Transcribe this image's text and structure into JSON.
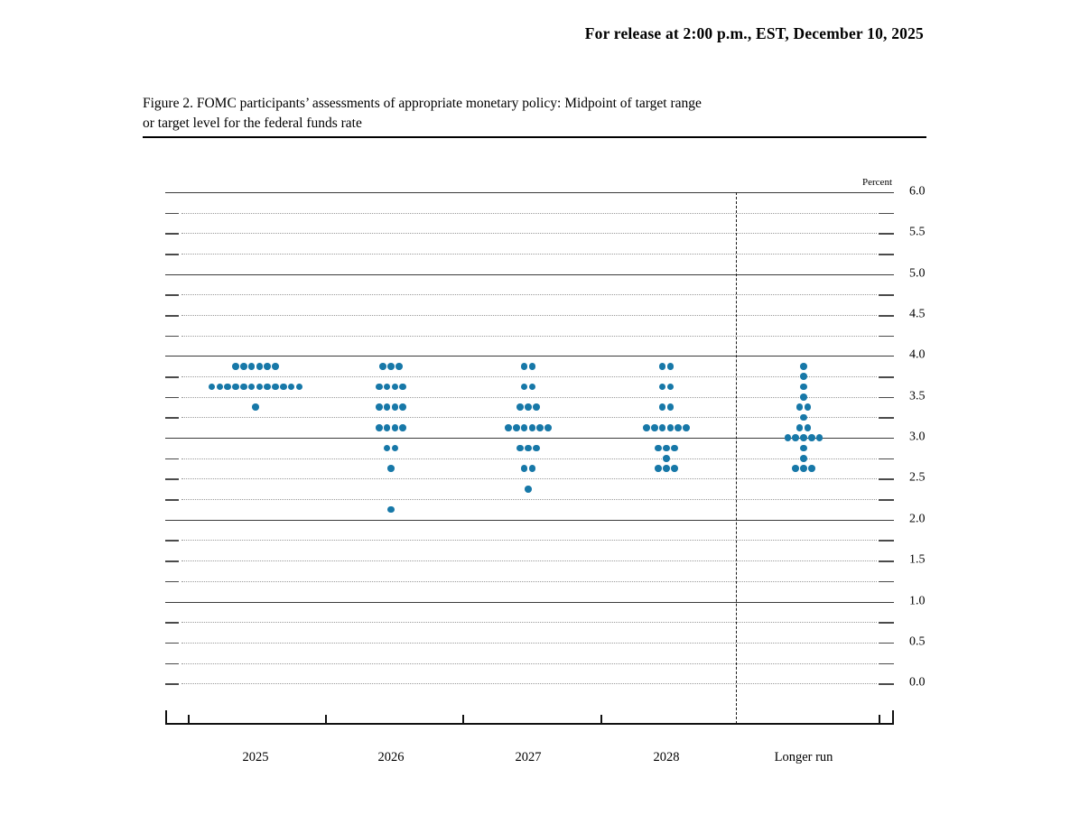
{
  "release_line": "For release at 2:00 p.m., EST, December 10, 2025",
  "figure_title_line1": "Figure 2. FOMC participants’ assessments of appropriate monetary policy: Midpoint of target range",
  "figure_title_line2": "or target level for the federal funds rate",
  "chart_data": {
    "type": "scatter",
    "subtype": "fomc-dot-plot",
    "title": "Figure 2. FOMC participants’ assessments of appropriate monetary policy: Midpoint of target range or target level for the federal funds rate",
    "unit_label": "Percent",
    "xlabel": "",
    "ylabel": "Percent",
    "ylim": [
      -0.5,
      6.0
    ],
    "y_tick_label_max": 6.0,
    "y_tick_label_step": 0.5,
    "y_tick_labels": [
      "6.0",
      "5.5",
      "5.0",
      "4.5",
      "4.0",
      "3.5",
      "3.0",
      "2.5",
      "2.0",
      "1.5",
      "1.0",
      "0.5",
      "0.0"
    ],
    "minor_grid_step": 0.25,
    "solid_gridline_values": [
      6.0,
      5.0,
      4.0,
      3.0,
      2.0,
      1.0
    ],
    "grid": "on",
    "legend_position": "none",
    "dot_color": "#1778a8",
    "categories": [
      "2025",
      "2026",
      "2027",
      "2028",
      "Longer run"
    ],
    "separator_after_category": "2028",
    "dots_per_level": [
      {
        "category": "2025",
        "levels": [
          {
            "value": 3.875,
            "count": 6
          },
          {
            "value": 3.625,
            "count": 12
          },
          {
            "value": 3.375,
            "count": 1
          }
        ]
      },
      {
        "category": "2026",
        "levels": [
          {
            "value": 3.875,
            "count": 3
          },
          {
            "value": 3.625,
            "count": 4
          },
          {
            "value": 3.375,
            "count": 4
          },
          {
            "value": 3.125,
            "count": 4
          },
          {
            "value": 2.875,
            "count": 2
          },
          {
            "value": 2.625,
            "count": 1
          },
          {
            "value": 2.125,
            "count": 1
          }
        ]
      },
      {
        "category": "2027",
        "levels": [
          {
            "value": 3.875,
            "count": 2
          },
          {
            "value": 3.625,
            "count": 2
          },
          {
            "value": 3.375,
            "count": 3
          },
          {
            "value": 3.125,
            "count": 6
          },
          {
            "value": 2.875,
            "count": 3
          },
          {
            "value": 2.625,
            "count": 2
          },
          {
            "value": 2.375,
            "count": 1
          }
        ]
      },
      {
        "category": "2028",
        "levels": [
          {
            "value": 3.875,
            "count": 2
          },
          {
            "value": 3.625,
            "count": 2
          },
          {
            "value": 3.375,
            "count": 2
          },
          {
            "value": 3.125,
            "count": 6
          },
          {
            "value": 2.875,
            "count": 3
          },
          {
            "value": 2.75,
            "count": 1
          },
          {
            "value": 2.625,
            "count": 3
          }
        ]
      },
      {
        "category": "Longer run",
        "levels": [
          {
            "value": 3.875,
            "count": 1
          },
          {
            "value": 3.75,
            "count": 1
          },
          {
            "value": 3.625,
            "count": 1
          },
          {
            "value": 3.5,
            "count": 1
          },
          {
            "value": 3.375,
            "count": 2
          },
          {
            "value": 3.25,
            "count": 1
          },
          {
            "value": 3.125,
            "count": 2
          },
          {
            "value": 3.0,
            "count": 5
          },
          {
            "value": 2.875,
            "count": 1
          },
          {
            "value": 2.75,
            "count": 1
          },
          {
            "value": 2.625,
            "count": 3
          }
        ]
      }
    ]
  }
}
